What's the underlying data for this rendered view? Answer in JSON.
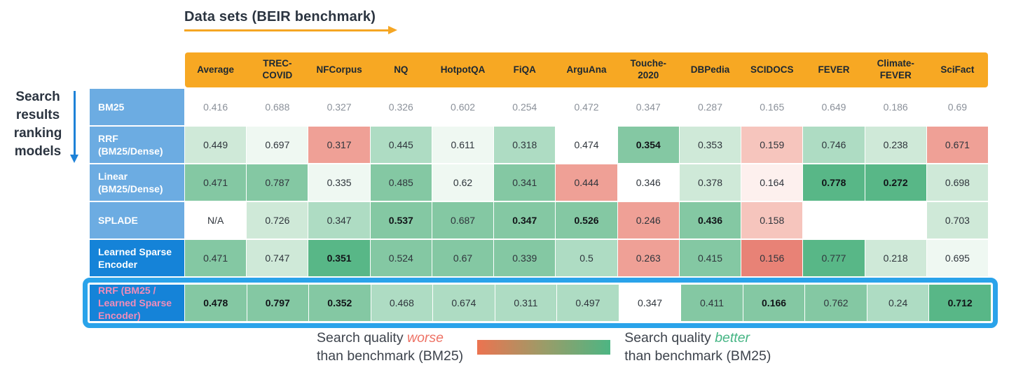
{
  "title": "Data sets (BEIR benchmark)",
  "left_axis_label": "Search results ranking models",
  "palette": {
    "w": "#ffffff",
    "g0": "#eff8f2",
    "g1": "#cfe9d8",
    "g2": "#aedcc3",
    "g3": "#84c8a3",
    "g4": "#58b787",
    "r0": "#fdf0ee",
    "r1": "#f6c5bd",
    "r2": "#efa096",
    "r3": "#e88276"
  },
  "colors": {
    "header_bg": "#f7a823",
    "header_text": "#1b2733",
    "row_label_light_blue": "#6cace2",
    "row_label_dark_blue": "#1583d8",
    "highlight_row_label_text": "#f18cba",
    "highlight_box_border": "#2aa3ea",
    "top_arrow": "#f5a623",
    "left_arrow": "#1e82d8",
    "legend_worse": "#ee7265",
    "legend_better": "#45b584"
  },
  "chart_data": {
    "type": "heatmap",
    "title": "Data sets (BEIR benchmark)",
    "row_axis_label": "Search results ranking models",
    "columns": [
      "Average",
      "TREC-COVID",
      "NFCorpus",
      "NQ",
      "HotpotQA",
      "FiQA",
      "ArguAna",
      "Touche-2020",
      "DBPedia",
      "SCIDOCS",
      "FEVER",
      "Climate-FEVER",
      "SciFact"
    ],
    "rows": [
      {
        "label": "BM25",
        "label_tone": "light",
        "muted": true,
        "highlighted": false,
        "pink_label": false,
        "values": [
          "0.416",
          "0.688",
          "0.327",
          "0.326",
          "0.602",
          "0.254",
          "0.472",
          "0.347",
          "0.287",
          "0.165",
          "0.649",
          "0.186",
          "0.69"
        ],
        "colors": [
          "w",
          "w",
          "w",
          "w",
          "w",
          "w",
          "w",
          "w",
          "w",
          "w",
          "w",
          "w",
          "w"
        ],
        "bold": [
          0,
          0,
          0,
          0,
          0,
          0,
          0,
          0,
          0,
          0,
          0,
          0,
          0
        ]
      },
      {
        "label": "RRF (BM25/Dense)",
        "label_tone": "light",
        "muted": false,
        "highlighted": false,
        "pink_label": false,
        "values": [
          "0.449",
          "0.697",
          "0.317",
          "0.445",
          "0.611",
          "0.318",
          "0.474",
          "0.354",
          "0.353",
          "0.159",
          "0.746",
          "0.238",
          "0.671"
        ],
        "colors": [
          "g1",
          "g0",
          "r2",
          "g2",
          "g0",
          "g2",
          "w",
          "g3",
          "g1",
          "r1",
          "g2",
          "g1",
          "r2"
        ],
        "bold": [
          0,
          0,
          0,
          0,
          0,
          0,
          0,
          1,
          0,
          0,
          0,
          0,
          0
        ]
      },
      {
        "label": "Linear (BM25/Dense)",
        "label_tone": "light",
        "muted": false,
        "highlighted": false,
        "pink_label": false,
        "values": [
          "0.471",
          "0.787",
          "0.335",
          "0.485",
          "0.62",
          "0.341",
          "0.444",
          "0.346",
          "0.378",
          "0.164",
          "0.778",
          "0.272",
          "0.698"
        ],
        "colors": [
          "g3",
          "g3",
          "g0",
          "g3",
          "g0",
          "g3",
          "r2",
          "w",
          "g1",
          "r0",
          "g4",
          "g4",
          "g1"
        ],
        "bold": [
          0,
          0,
          0,
          0,
          0,
          0,
          0,
          0,
          0,
          0,
          1,
          1,
          0
        ]
      },
      {
        "label": "SPLADE",
        "label_tone": "light",
        "muted": false,
        "highlighted": false,
        "pink_label": false,
        "values": [
          "N/A",
          "0.726",
          "0.347",
          "0.537",
          "0.687",
          "0.347",
          "0.526",
          "0.246",
          "0.436",
          "0.158",
          "",
          "",
          "0.703"
        ],
        "colors": [
          "w",
          "g1",
          "g2",
          "g3",
          "g3",
          "g3",
          "g3",
          "r2",
          "g3",
          "r1",
          "w",
          "w",
          "g1"
        ],
        "bold": [
          0,
          0,
          0,
          1,
          0,
          1,
          1,
          0,
          1,
          0,
          0,
          0,
          0
        ]
      },
      {
        "label": "Learned Sparse Encoder",
        "label_tone": "dark",
        "muted": false,
        "highlighted": false,
        "pink_label": false,
        "values": [
          "0.471",
          "0.747",
          "0.351",
          "0.524",
          "0.67",
          "0.339",
          "0.5",
          "0.263",
          "0.415",
          "0.156",
          "0.777",
          "0.218",
          "0.695"
        ],
        "colors": [
          "g3",
          "g1",
          "g4",
          "g3",
          "g3",
          "g3",
          "g2",
          "r2",
          "g3",
          "r3",
          "g4",
          "g1",
          "g0"
        ],
        "bold": [
          0,
          0,
          1,
          0,
          0,
          0,
          0,
          0,
          0,
          0,
          0,
          0,
          0
        ]
      },
      {
        "label": "RRF (BM25 / Learned Sparse Encoder)",
        "label_tone": "dark",
        "muted": false,
        "highlighted": true,
        "pink_label": true,
        "values": [
          "0.478",
          "0.797",
          "0.352",
          "0.468",
          "0.674",
          "0.311",
          "0.497",
          "0.347",
          "0.411",
          "0.166",
          "0.762",
          "0.24",
          "0.712"
        ],
        "colors": [
          "g3",
          "g3",
          "g3",
          "g2",
          "g2",
          "g2",
          "g2",
          "w",
          "g3",
          "g3",
          "g3",
          "g2",
          "g4"
        ],
        "bold": [
          1,
          1,
          1,
          0,
          0,
          0,
          0,
          0,
          0,
          1,
          0,
          0,
          1
        ]
      }
    ],
    "legend_position": "bottom",
    "color_scale_meaning": "red = worse than BM25 benchmark, green = better than BM25 benchmark"
  },
  "legend": {
    "prefix": "Search quality ",
    "worse_word": "worse",
    "better_word": "better",
    "suffix": "than benchmark (BM25)"
  }
}
